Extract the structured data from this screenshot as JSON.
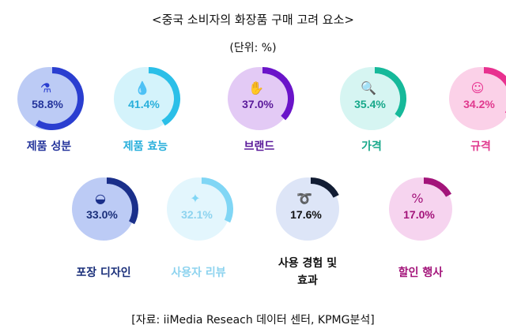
{
  "title": "<중국 소비자의 화장품 구매 고려 요소>",
  "subtitle": "(단위: %)",
  "source": "[자료: iiMedia Reseach 데이터 센터, KPMG분석]",
  "chart_data": {
    "type": "donut-gauges",
    "unit": "%",
    "items": [
      {
        "label": "제품 성분",
        "value": 58.8,
        "display": "58.8%",
        "icon": "ingredients-icon",
        "bg": "#bccbf5",
        "color": "#2a3ed0",
        "text": "#25359c"
      },
      {
        "label": "제품 효능",
        "value": 41.4,
        "display": "41.4%",
        "icon": "water-drops-icon",
        "bg": "#d4f3fb",
        "color": "#2bbfe8",
        "text": "#28afdb"
      },
      {
        "label": "브랜드",
        "value": 37.0,
        "display": "37.0%",
        "icon": "hand-icon",
        "bg": "#e3caf5",
        "color": "#6a14c9",
        "text": "#5a1a9a"
      },
      {
        "label": "가격",
        "value": 35.4,
        "display": "35.4%",
        "icon": "price-search-icon",
        "bg": "#d6f5f2",
        "color": "#16b99a",
        "text": "#17a88a"
      },
      {
        "label": "규격",
        "value": 34.2,
        "display": "34.2%",
        "icon": "face-mask-icon",
        "bg": "#fbd1e8",
        "color": "#e8318f",
        "text": "#e0398e"
      },
      {
        "label": "포장 디자인",
        "value": 33.0,
        "display": "33.0%",
        "icon": "cream-jar-icon",
        "bg": "#bccbf5",
        "color": "#1a2f8a",
        "text": "#1a2f7a"
      },
      {
        "label": "사용자 리뷰",
        "value": 32.1,
        "display": "32.1%",
        "icon": "sparkle-box-icon",
        "bg": "#e3f6fd",
        "color": "#80d6f5",
        "text": "#8dd3ef"
      },
      {
        "label": [
          "사용 경험 및",
          "효과"
        ],
        "value": 17.6,
        "display": "17.6%",
        "icon": "hand-cream-icon",
        "bg": "#dde5f7",
        "color": "#111c33",
        "text": "#111111"
      },
      {
        "label": "할인 행사",
        "value": 17.0,
        "display": "17.0%",
        "icon": "coupon-icon",
        "bg": "#f6d4ef",
        "color": "#a3147a",
        "text": "#a3147a"
      }
    ]
  }
}
